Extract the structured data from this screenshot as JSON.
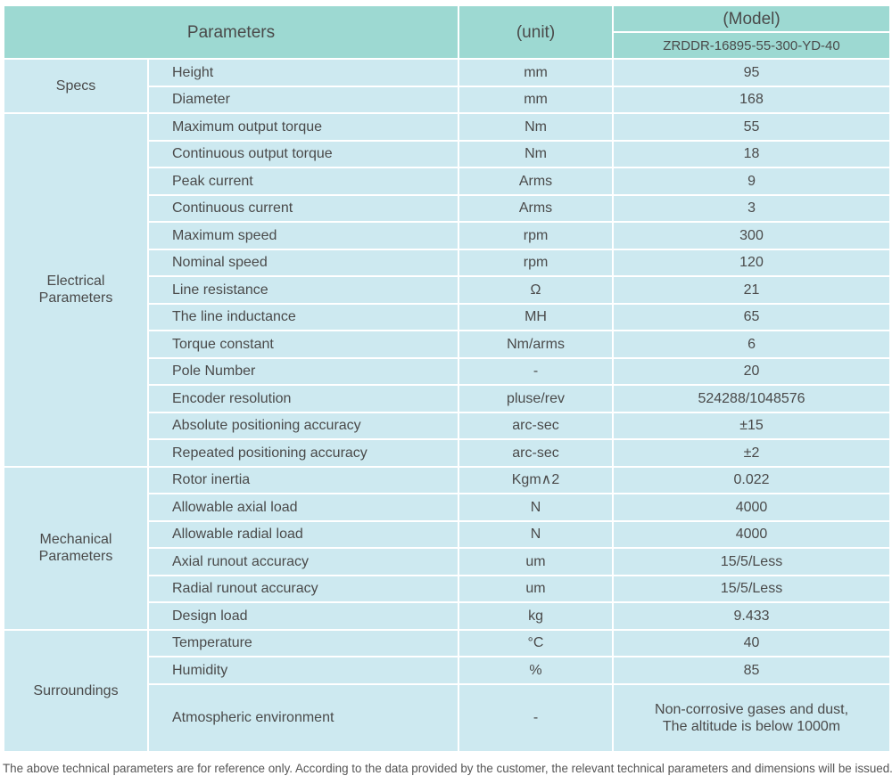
{
  "header": {
    "parameters": "Parameters",
    "unit": "(unit)",
    "model_label": "(Model)",
    "model": "ZRDDR-16895-55-300-YD-40"
  },
  "groups": [
    {
      "name": "Specs",
      "rows": [
        [
          "Height",
          "mm",
          "95"
        ],
        [
          "Diameter",
          "mm",
          "168"
        ]
      ]
    },
    {
      "name": "Electrical\nParameters",
      "rows": [
        [
          "Maximum output torque",
          "Nm",
          "55"
        ],
        [
          "Continuous output torque",
          "Nm",
          "18"
        ],
        [
          "Peak current",
          "Arms",
          "9"
        ],
        [
          "Continuous current",
          "Arms",
          "3"
        ],
        [
          "Maximum speed",
          "rpm",
          "300"
        ],
        [
          "Nominal speed",
          "rpm",
          "120"
        ],
        [
          "Line resistance",
          "Ω",
          "21"
        ],
        [
          "The line inductance",
          "MH",
          "65"
        ],
        [
          "Torque constant",
          "Nm/arms",
          "6"
        ],
        [
          "Pole Number",
          "-",
          "20"
        ],
        [
          "Encoder resolution",
          "pluse/rev",
          "524288/1048576"
        ],
        [
          "Absolute positioning accuracy",
          "arc-sec",
          "±15"
        ],
        [
          "Repeated positioning accuracy",
          "arc-sec",
          "±2"
        ]
      ]
    },
    {
      "name": "Mechanical\nParameters",
      "rows": [
        [
          "Rotor inertia",
          "Kgm∧2",
          "0.022"
        ],
        [
          "Allowable axial load",
          "N",
          "4000"
        ],
        [
          "Allowable radial load",
          "N",
          "4000"
        ],
        [
          "Axial runout accuracy",
          "um",
          "15/5/Less"
        ],
        [
          "Radial runout accuracy",
          "um",
          "15/5/Less"
        ],
        [
          "Design load",
          "kg",
          "9.433"
        ]
      ]
    },
    {
      "name": "Surroundings",
      "rows": [
        [
          "Temperature",
          "°C",
          "40"
        ],
        [
          "Humidity",
          "%",
          "85"
        ],
        [
          "Atmospheric environment",
          "-",
          "Non-corrosive gases and dust,\nThe altitude is below 1000m"
        ]
      ]
    }
  ],
  "footnote": "The above technical parameters are for reference only. According to the data provided by the customer, the relevant technical parameters and dimensions will be issued."
}
